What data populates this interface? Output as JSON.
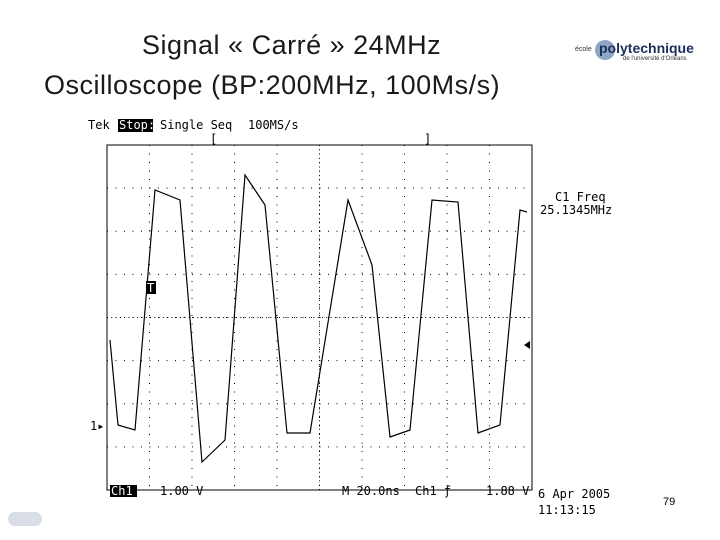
{
  "slide": {
    "title_line1": "Signal « Carré » 24MHz",
    "title_line2": "Oscilloscope (BP:200MHz, 100Ms/s)",
    "logo": {
      "small": "école",
      "main": "polytechnique",
      "sub": "de l'université d'Orléans"
    },
    "page_number": "79"
  },
  "scope": {
    "brand": "Tek",
    "status": "Stop:",
    "mode": "Single Seq",
    "rate": "100MS/s",
    "bracket_left": "[",
    "bracket_right": "]",
    "measure_label": "C1 Freq",
    "measure_value": "25.1345MHz",
    "trigger_marker": "T",
    "channel_marker": "1▸",
    "channel": "Ch1",
    "volts": "1.00 V",
    "timebase": "M 20.0ns",
    "trigger_source": "Ch1 ƒ",
    "trigger_level": "1.88 V",
    "date": "6 Apr 2005",
    "time": "11:13:15"
  }
}
